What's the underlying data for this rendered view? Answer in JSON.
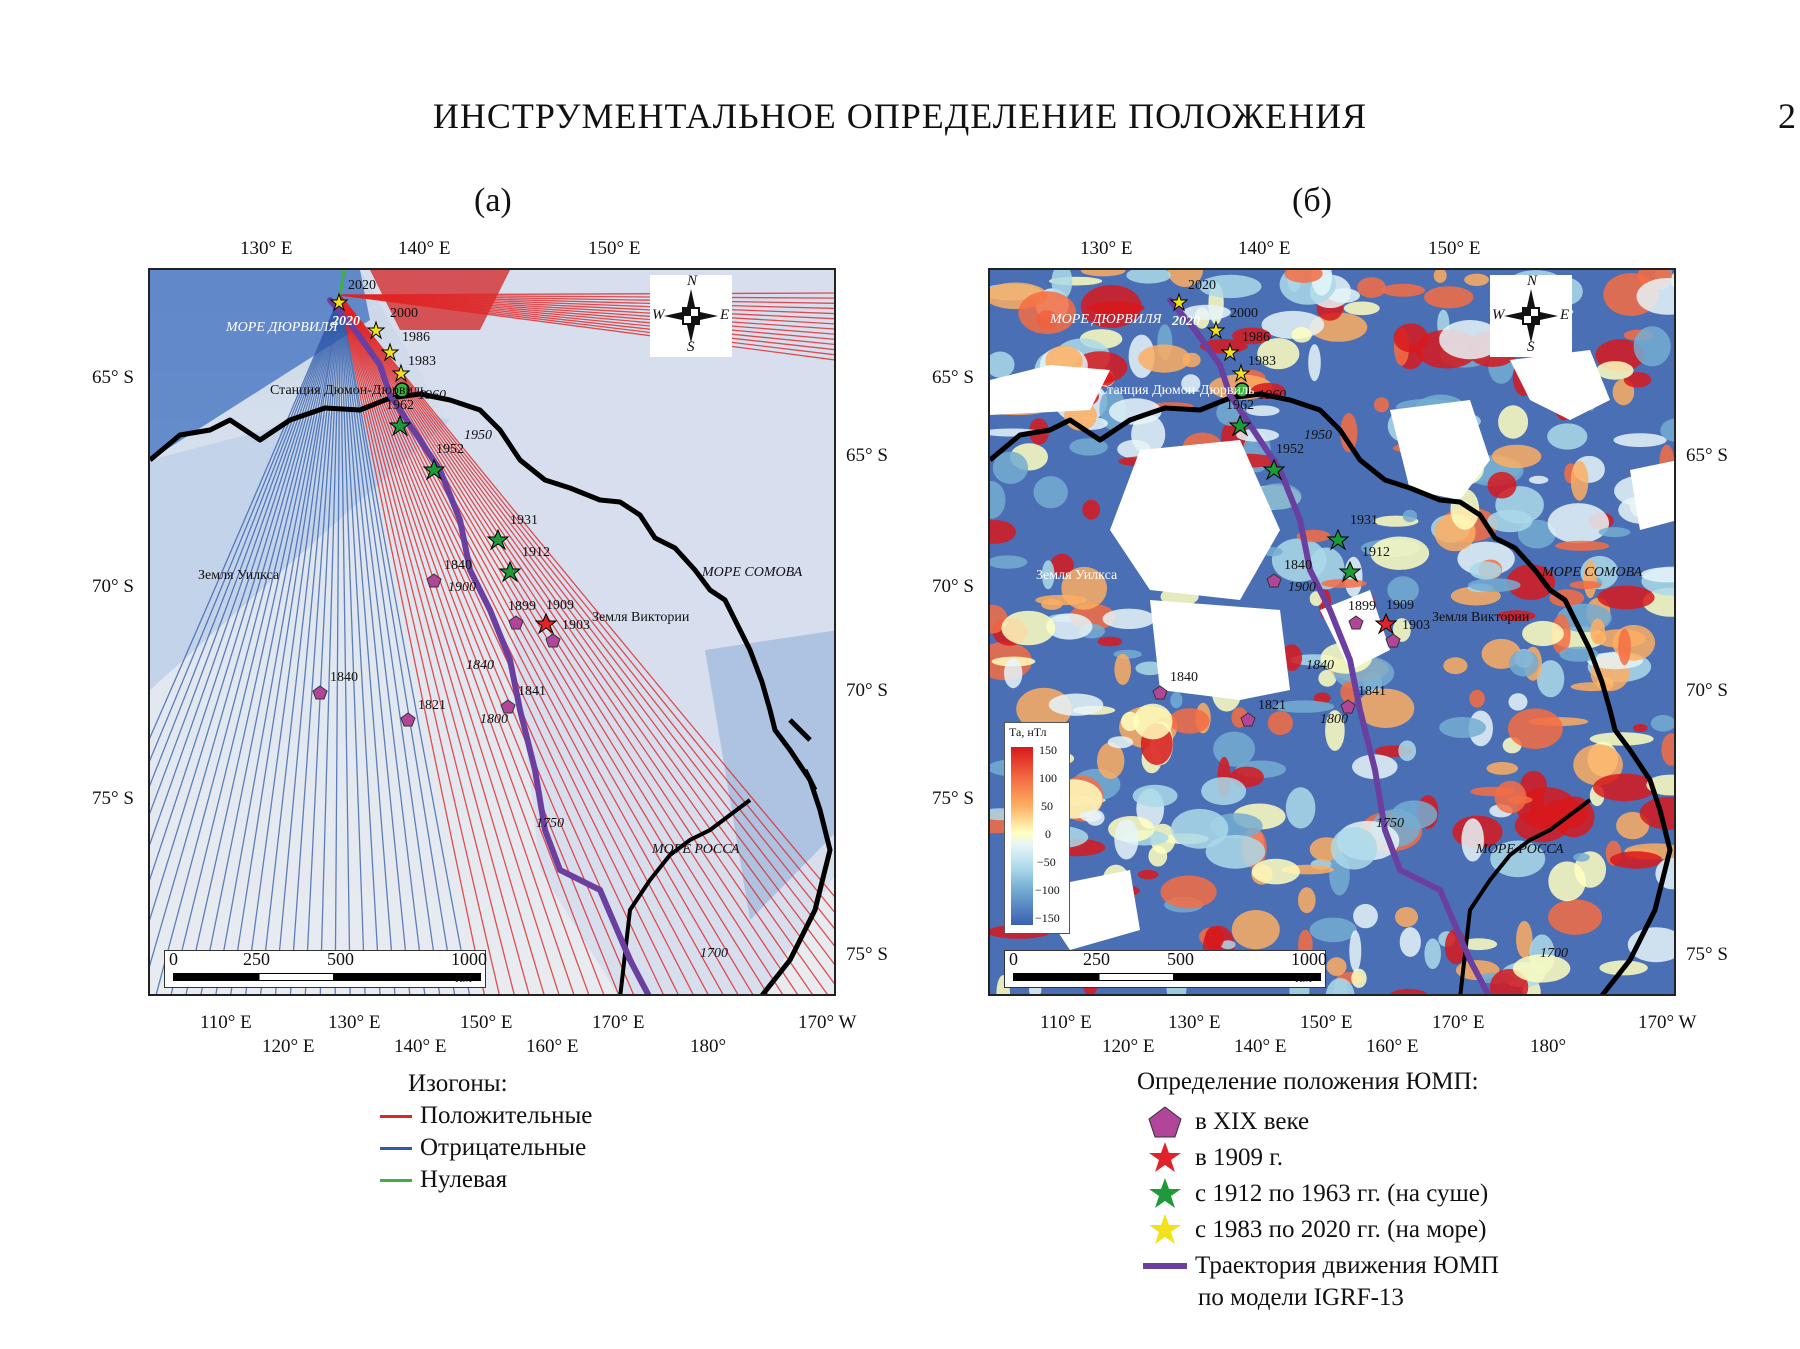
{
  "header": {
    "title": "ИНСТРУМЕНТАЛЬНОЕ ОПРЕДЕЛЕНИЕ ПОЛОЖЕНИЯ",
    "page_number": "2"
  },
  "panels": [
    {
      "label": "(а)"
    },
    {
      "label": "(б)"
    }
  ],
  "axes": {
    "top_lon": [
      "130° E",
      "140° E",
      "150° E"
    ],
    "left_lat": [
      "65° S",
      "70° S",
      "75° S"
    ],
    "right_lat": [
      "65° S",
      "70° S",
      "75° S"
    ],
    "bottom_row1": [
      "110° E",
      "130° E",
      "150° E",
      "170° E",
      "170° W"
    ],
    "bottom_row2": [
      "120° E",
      "140° E",
      "160° E",
      "180°"
    ]
  },
  "compass": {
    "n": "N",
    "s": "S",
    "w": "W",
    "e": "E"
  },
  "scalebar": {
    "t0": "0",
    "t1": "250",
    "t2": "500",
    "t3": "1000",
    "unit": "КМ"
  },
  "map_labels": {
    "sea_durvil": "МОРЕ ДЮРВИЛЯ",
    "station": "Станция Дюмон-Дюрвиль",
    "wilkes": "Земля Уилкса",
    "sea_somov": "МОРЕ СОМОВА",
    "victoria": "Земля Виктории",
    "sea_ross": "МОРЕ РОССА"
  },
  "points": {
    "y2020": "2020",
    "y2020b": "2020",
    "y2000": "2000",
    "y1986": "1986",
    "y1983": "1983",
    "y1960": "1960",
    "y1962": "1962",
    "y1950": "1950",
    "y1952": "1952",
    "y1931": "1931",
    "y1912": "1912",
    "y1840a": "1840",
    "y1900": "1900",
    "y1899": "1899",
    "y1909": "1909",
    "y1903": "1903",
    "y1840b": "1840",
    "y1840c": "1840",
    "y1841": "1841",
    "y1821": "1821",
    "y1800": "1800",
    "y1750": "1750",
    "y1700": "1700"
  },
  "colorbar": {
    "title": "Та, нТл",
    "ticks": [
      "150",
      "100",
      "50",
      "0",
      "−50",
      "−100",
      "−150"
    ]
  },
  "legend_a": {
    "title": "Изогоны:",
    "items": [
      {
        "label": "Положительные",
        "color": "#e02424"
      },
      {
        "label": "Отрицательные",
        "color": "#2f5aa8"
      },
      {
        "label": "Нулевая",
        "color": "#3cb043"
      }
    ]
  },
  "legend_b": {
    "title": "Определение положения ЮМП:",
    "items": [
      {
        "label": "в XIX веке",
        "symbol": "pentagon",
        "color": "#b0459a"
      },
      {
        "label": "в 1909 г.",
        "symbol": "star",
        "color": "#e0232a"
      },
      {
        "label": "с 1912 по 1963 гг. (на суше)",
        "symbol": "star",
        "color": "#1e9a3a"
      },
      {
        "label": "с 1983 по 2020 гг. (на море)",
        "symbol": "star",
        "color": "#f2e21c"
      },
      {
        "label": "Траектория движения ЮМП",
        "symbol": "line",
        "color": "#6b3fa0"
      }
    ],
    "model_note": "по модели IGRF-13"
  }
}
